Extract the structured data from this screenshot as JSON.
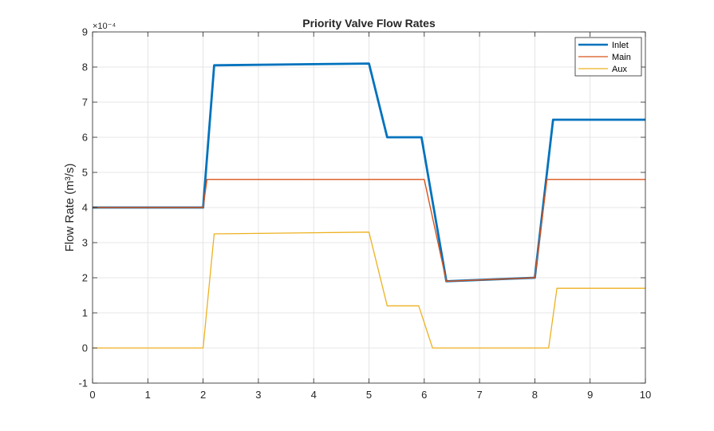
{
  "chart_data": {
    "type": "line",
    "title": "Priority Valve Flow Rates",
    "xlabel": "",
    "ylabel": "Flow  Rate  (m³/s)",
    "y_exponent_label": "×10⁻⁴",
    "xlim": [
      0,
      10
    ],
    "ylim": [
      -1,
      9
    ],
    "y_scale_factor": 0.0001,
    "x_ticks": [
      0,
      1,
      2,
      3,
      4,
      5,
      6,
      7,
      8,
      9,
      10
    ],
    "y_ticks": [
      -1,
      0,
      1,
      2,
      3,
      4,
      5,
      6,
      7,
      8,
      9
    ],
    "grid": true,
    "legend_position": "top-right",
    "series": [
      {
        "name": "Inlet",
        "color": "#0072BD",
        "x": [
          0,
          2.0,
          2.2,
          5.0,
          5.33,
          5.95,
          6.4,
          8.0,
          8.33,
          10
        ],
        "y": [
          4.0,
          4.0,
          8.05,
          8.1,
          6.0,
          6.0,
          1.9,
          2.0,
          6.5,
          6.5
        ]
      },
      {
        "name": "Main",
        "color": "#D95319",
        "x": [
          0,
          2.0,
          2.07,
          6.0,
          6.4,
          8.0,
          8.22,
          10
        ],
        "y": [
          4.0,
          4.0,
          4.8,
          4.8,
          1.9,
          2.0,
          4.8,
          4.8
        ]
      },
      {
        "name": "Aux",
        "color": "#EDB120",
        "x": [
          0,
          2.0,
          2.2,
          5.0,
          5.33,
          5.9,
          6.15,
          8.25,
          8.4,
          10
        ],
        "y": [
          0,
          0,
          3.25,
          3.3,
          1.2,
          1.2,
          0,
          0,
          1.7,
          1.7
        ]
      }
    ]
  }
}
